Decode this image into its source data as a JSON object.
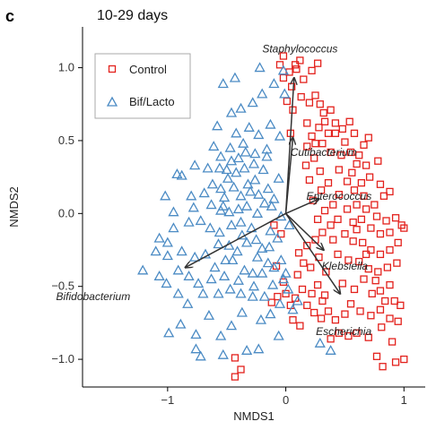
{
  "panel_label": "c",
  "chart_data": {
    "type": "scatter",
    "title": "10-29 days",
    "xlabel": "NMDS1",
    "ylabel": "NMDS2",
    "xlim": [
      -1.72,
      1.18
    ],
    "ylim": [
      -1.19,
      1.28
    ],
    "xticks": [
      -1,
      0,
      1
    ],
    "xtick_labels": [
      "−1",
      "0",
      "1"
    ],
    "yticks": [
      -1.0,
      -0.5,
      0.0,
      0.5,
      1.0
    ],
    "ytick_labels": [
      "−1.0",
      "−0.5",
      "0.0",
      "0.5",
      "1.0"
    ],
    "grid": false,
    "legend_position": "top-left",
    "series": [
      {
        "name": "Control",
        "marker": "square",
        "color": "#e3211c",
        "points": [
          [
            -0.05,
            1.02
          ],
          [
            -0.02,
            1.08
          ],
          [
            0.03,
            0.97
          ],
          [
            0.08,
            1.02
          ],
          [
            0.12,
            1.05
          ],
          [
            0.22,
            0.98
          ],
          [
            0.15,
            0.92
          ],
          [
            0.27,
            1.03
          ],
          [
            -0.02,
            0.93
          ],
          [
            0.05,
            0.87
          ],
          [
            0.13,
            0.8
          ],
          [
            0.06,
            0.71
          ],
          [
            0.2,
            0.76
          ],
          [
            0.25,
            0.81
          ],
          [
            0.29,
            0.75
          ],
          [
            0.32,
            0.69
          ],
          [
            0.38,
            0.71
          ],
          [
            0.42,
            0.62
          ],
          [
            0.33,
            0.63
          ],
          [
            0.28,
            0.59
          ],
          [
            0.22,
            0.53
          ],
          [
            0.18,
            0.46
          ],
          [
            0.25,
            0.48
          ],
          [
            0.31,
            0.48
          ],
          [
            0.36,
            0.55
          ],
          [
            0.42,
            0.55
          ],
          [
            0.48,
            0.58
          ],
          [
            0.54,
            0.63
          ],
          [
            0.58,
            0.55
          ],
          [
            0.5,
            0.49
          ],
          [
            0.38,
            0.42
          ],
          [
            0.47,
            0.4
          ],
          [
            0.55,
            0.42
          ],
          [
            0.62,
            0.4
          ],
          [
            0.66,
            0.47
          ],
          [
            0.7,
            0.52
          ],
          [
            0.6,
            0.34
          ],
          [
            0.68,
            0.33
          ],
          [
            0.78,
            0.36
          ],
          [
            0.56,
            0.28
          ],
          [
            0.64,
            0.21
          ],
          [
            0.71,
            0.25
          ],
          [
            0.8,
            0.2
          ],
          [
            0.83,
            0.12
          ],
          [
            0.58,
            0.16
          ],
          [
            0.66,
            0.12
          ],
          [
            0.75,
            0.06
          ],
          [
            0.88,
            0.15
          ],
          [
            0.6,
            0.06
          ],
          [
            0.68,
            0.03
          ],
          [
            0.77,
            -0.02
          ],
          [
            0.85,
            -0.05
          ],
          [
            0.93,
            -0.03
          ],
          [
            0.98,
            -0.08
          ],
          [
            0.45,
            0.13
          ],
          [
            0.52,
            0.03
          ],
          [
            0.57,
            -0.06
          ],
          [
            0.64,
            -0.04
          ],
          [
            0.72,
            -0.1
          ],
          [
            0.8,
            -0.14
          ],
          [
            0.88,
            -0.13
          ],
          [
            1.0,
            -0.1
          ],
          [
            0.5,
            -0.14
          ],
          [
            0.57,
            -0.19
          ],
          [
            0.65,
            -0.2
          ],
          [
            0.72,
            -0.25
          ],
          [
            0.8,
            -0.28
          ],
          [
            0.88,
            -0.25
          ],
          [
            0.95,
            -0.2
          ],
          [
            0.4,
            -0.18
          ],
          [
            0.44,
            -0.28
          ],
          [
            0.53,
            -0.32
          ],
          [
            0.62,
            -0.33
          ],
          [
            0.7,
            -0.38
          ],
          [
            0.78,
            -0.4
          ],
          [
            0.86,
            -0.37
          ],
          [
            0.94,
            -0.34
          ],
          [
            0.48,
            -0.48
          ],
          [
            0.58,
            -0.52
          ],
          [
            0.66,
            -0.45
          ],
          [
            0.73,
            -0.55
          ],
          [
            0.8,
            -0.53
          ],
          [
            0.88,
            -0.49
          ],
          [
            0.92,
            -0.6
          ],
          [
            0.97,
            -0.63
          ],
          [
            0.55,
            -0.62
          ],
          [
            0.63,
            -0.67
          ],
          [
            0.72,
            -0.7
          ],
          [
            0.8,
            -0.66
          ],
          [
            0.88,
            -0.72
          ],
          [
            0.95,
            -0.74
          ],
          [
            0.6,
            -0.82
          ],
          [
            0.7,
            -0.85
          ],
          [
            0.81,
            -0.78
          ],
          [
            0.9,
            -0.88
          ],
          [
            0.77,
            -0.98
          ],
          [
            0.82,
            -1.05
          ],
          [
            0.93,
            -1.02
          ],
          [
            1.0,
            -1.0
          ],
          [
            -0.02,
            -0.47
          ],
          [
            0.0,
            -0.55
          ],
          [
            0.04,
            -0.63
          ],
          [
            0.08,
            -0.58
          ],
          [
            -0.07,
            -0.57
          ],
          [
            -0.12,
            -0.61
          ],
          [
            0.1,
            -0.42
          ],
          [
            0.14,
            -0.52
          ],
          [
            0.22,
            -0.55
          ],
          [
            0.27,
            -0.49
          ],
          [
            0.33,
            -0.56
          ],
          [
            0.18,
            -0.63
          ],
          [
            0.24,
            -0.68
          ],
          [
            0.3,
            -0.72
          ],
          [
            0.36,
            -0.67
          ],
          [
            0.42,
            -0.73
          ],
          [
            0.5,
            -0.69
          ],
          [
            0.06,
            -0.73
          ],
          [
            0.12,
            -0.77
          ],
          [
            0.45,
            -0.82
          ],
          [
            0.53,
            -0.84
          ],
          [
            0.38,
            -0.86
          ],
          [
            0.31,
            -0.6
          ],
          [
            0.15,
            -0.34
          ],
          [
            0.21,
            -0.37
          ],
          [
            0.28,
            -0.3
          ],
          [
            0.34,
            -0.4
          ],
          [
            0.11,
            -0.27
          ],
          [
            0.18,
            -0.22
          ],
          [
            0.25,
            -0.18
          ],
          [
            0.31,
            -0.13
          ],
          [
            0.38,
            -0.08
          ],
          [
            0.44,
            -0.04
          ],
          [
            0.27,
            -0.04
          ],
          [
            0.33,
            0.02
          ],
          [
            0.4,
            0.06
          ],
          [
            0.23,
            0.09
          ],
          [
            0.3,
            0.16
          ],
          [
            0.36,
            0.21
          ],
          [
            0.2,
            0.23
          ],
          [
            0.17,
            0.33
          ],
          [
            0.24,
            0.38
          ],
          [
            0.29,
            0.29
          ],
          [
            -0.43,
            -0.99
          ],
          [
            -0.38,
            -1.07
          ],
          [
            -0.43,
            -1.12
          ],
          [
            0.09,
            0.99
          ],
          [
            0.01,
            0.77
          ],
          [
            0.04,
            0.55
          ],
          [
            0.18,
            0.62
          ],
          [
            -0.1,
            -0.08
          ],
          [
            -0.04,
            -0.14
          ],
          [
            -0.08,
            -0.36
          ],
          [
            0.45,
            0.3
          ],
          [
            0.52,
            0.22
          ],
          [
            0.6,
            -0.11
          ],
          [
            0.68,
            -0.28
          ],
          [
            0.76,
            -0.46
          ],
          [
            0.84,
            -0.6
          ]
        ]
      },
      {
        "name": "Bif/Lacto",
        "marker": "triangle",
        "color": "#4b8bc4",
        "points": [
          [
            -0.92,
            0.27
          ],
          [
            -0.88,
            0.26
          ],
          [
            -1.02,
            0.12
          ],
          [
            -0.95,
            0.01
          ],
          [
            -0.82,
            -0.06
          ],
          [
            -1.07,
            -0.17
          ],
          [
            -1.0,
            -0.2
          ],
          [
            -0.88,
            -0.26
          ],
          [
            -1.0,
            -0.29
          ],
          [
            -1.1,
            -0.26
          ],
          [
            -0.91,
            -0.39
          ],
          [
            -0.82,
            -0.43
          ],
          [
            -1.01,
            -0.48
          ],
          [
            -1.07,
            -0.43
          ],
          [
            -1.21,
            -0.39
          ],
          [
            -0.83,
            -0.62
          ],
          [
            -0.65,
            -0.7
          ],
          [
            -0.6,
            -0.37
          ],
          [
            -0.52,
            -0.43
          ],
          [
            -0.4,
            -0.46
          ],
          [
            -0.35,
            -0.39
          ],
          [
            -0.28,
            -0.41
          ],
          [
            -0.2,
            -0.41
          ],
          [
            -0.15,
            -0.34
          ],
          [
            -0.1,
            -0.37
          ],
          [
            -0.04,
            -0.32
          ],
          [
            0.0,
            -0.41
          ],
          [
            -0.18,
            -0.57
          ],
          [
            -0.28,
            -0.57
          ],
          [
            -0.38,
            -0.55
          ],
          [
            -0.47,
            -0.52
          ],
          [
            -0.57,
            -0.55
          ],
          [
            -0.74,
            -0.48
          ],
          [
            -0.77,
            -0.3
          ],
          [
            -0.68,
            -0.28
          ],
          [
            -0.57,
            -0.21
          ],
          [
            -0.48,
            -0.22
          ],
          [
            -0.41,
            -0.26
          ],
          [
            -0.33,
            -0.2
          ],
          [
            -0.25,
            -0.18
          ],
          [
            -0.2,
            -0.24
          ],
          [
            -0.14,
            -0.23
          ],
          [
            -0.07,
            -0.17
          ],
          [
            -0.29,
            -0.1
          ],
          [
            -0.38,
            -0.06
          ],
          [
            -0.46,
            -0.08
          ],
          [
            -0.56,
            -0.13
          ],
          [
            -0.64,
            -0.1
          ],
          [
            -0.72,
            -0.05
          ],
          [
            -0.78,
            0.04
          ],
          [
            -0.63,
            0.06
          ],
          [
            -0.55,
            0.02
          ],
          [
            -0.48,
            0.01
          ],
          [
            -0.4,
            0.03
          ],
          [
            -0.33,
            0.05
          ],
          [
            -0.24,
            0.0
          ],
          [
            -0.18,
            0.07
          ],
          [
            -0.69,
            0.14
          ],
          [
            -0.62,
            0.2
          ],
          [
            -0.55,
            0.17
          ],
          [
            -0.49,
            0.24
          ],
          [
            -0.44,
            0.18
          ],
          [
            -0.38,
            0.12
          ],
          [
            -0.3,
            0.15
          ],
          [
            -0.23,
            0.13
          ],
          [
            -0.15,
            0.17
          ],
          [
            -0.1,
            0.1
          ],
          [
            -0.06,
            0.24
          ],
          [
            -0.66,
            0.31
          ],
          [
            -0.56,
            0.31
          ],
          [
            -0.5,
            0.3
          ],
          [
            -0.46,
            0.36
          ],
          [
            -0.42,
            0.28
          ],
          [
            -0.35,
            0.31
          ],
          [
            -0.27,
            0.34
          ],
          [
            -0.19,
            0.3
          ],
          [
            -0.77,
            0.33
          ],
          [
            -0.55,
            0.39
          ],
          [
            -0.47,
            0.45
          ],
          [
            -0.4,
            0.38
          ],
          [
            -0.36,
            0.48
          ],
          [
            -0.42,
            0.55
          ],
          [
            -0.31,
            0.59
          ],
          [
            -0.23,
            0.54
          ],
          [
            -0.13,
            0.61
          ],
          [
            -0.05,
            0.53
          ],
          [
            -0.46,
            0.69
          ],
          [
            -0.38,
            0.72
          ],
          [
            -0.28,
            0.76
          ],
          [
            -0.2,
            0.82
          ],
          [
            -0.1,
            0.89
          ],
          [
            -0.01,
            0.82
          ],
          [
            -0.53,
            0.89
          ],
          [
            -0.43,
            0.93
          ],
          [
            -0.22,
            1.0
          ],
          [
            -0.02,
            0.98
          ],
          [
            0.02,
            -0.52
          ],
          [
            -0.05,
            -0.62
          ],
          [
            0.06,
            -0.66
          ],
          [
            -0.13,
            -0.69
          ],
          [
            -0.21,
            -0.73
          ],
          [
            -0.37,
            -0.68
          ],
          [
            -0.46,
            -0.77
          ],
          [
            -0.55,
            -0.84
          ],
          [
            -0.76,
            -0.83
          ],
          [
            -0.99,
            -0.82
          ],
          [
            -0.89,
            -0.76
          ],
          [
            -0.76,
            -0.93
          ],
          [
            -0.53,
            -0.97
          ],
          [
            -0.72,
            -0.98
          ],
          [
            -0.23,
            -0.93
          ],
          [
            -0.33,
            -0.94
          ],
          [
            -0.06,
            -0.84
          ],
          [
            0.29,
            -0.89
          ],
          [
            0.38,
            -0.94
          ],
          [
            -0.32,
            0.2
          ],
          [
            -0.26,
            0.23
          ],
          [
            -0.12,
            0.05
          ],
          [
            -0.51,
            -0.32
          ],
          [
            -0.45,
            -0.32
          ],
          [
            -0.24,
            -0.3
          ],
          [
            -0.63,
            -0.45
          ],
          [
            -0.7,
            -0.55
          ],
          [
            -0.91,
            -0.55
          ],
          [
            -0.34,
            0.42
          ],
          [
            -0.26,
            0.41
          ],
          [
            -0.16,
            0.44
          ],
          [
            -0.61,
            0.46
          ],
          [
            -0.58,
            0.6
          ],
          [
            -0.52,
            0.11
          ],
          [
            -0.37,
            -0.15
          ],
          [
            -0.13,
            -0.12
          ],
          [
            -0.04,
            -0.02
          ],
          [
            0.03,
            -0.08
          ],
          [
            -0.27,
            -0.5
          ],
          [
            0.1,
            -0.6
          ],
          [
            -0.02,
            -0.45
          ],
          [
            -0.11,
            -0.49
          ],
          [
            -0.16,
            0.39
          ],
          [
            -0.53,
            0.05
          ],
          [
            -0.8,
            0.12
          ],
          [
            -0.95,
            -0.1
          ]
        ]
      }
    ],
    "vectors": [
      {
        "label": "Staphylococcus",
        "dx": 0.07,
        "dy": 0.93,
        "lx": 0.12,
        "ly": 1.13
      },
      {
        "label": "Cutibacterium",
        "dx": 0.06,
        "dy": 0.52,
        "lx": 0.32,
        "ly": 0.42
      },
      {
        "label": "Enterococcus",
        "dx": 0.28,
        "dy": 0.1,
        "lx": 0.45,
        "ly": 0.12
      },
      {
        "label": "Klebsiella",
        "dx": 0.32,
        "dy": -0.25,
        "lx": 0.5,
        "ly": -0.36
      },
      {
        "label": "Escherichia",
        "dx": 0.46,
        "dy": -0.55,
        "lx": 0.49,
        "ly": -0.81
      },
      {
        "label": "Bifidobacterium",
        "dx": -0.85,
        "dy": -0.37,
        "lx": -1.63,
        "ly": -0.57
      }
    ]
  }
}
